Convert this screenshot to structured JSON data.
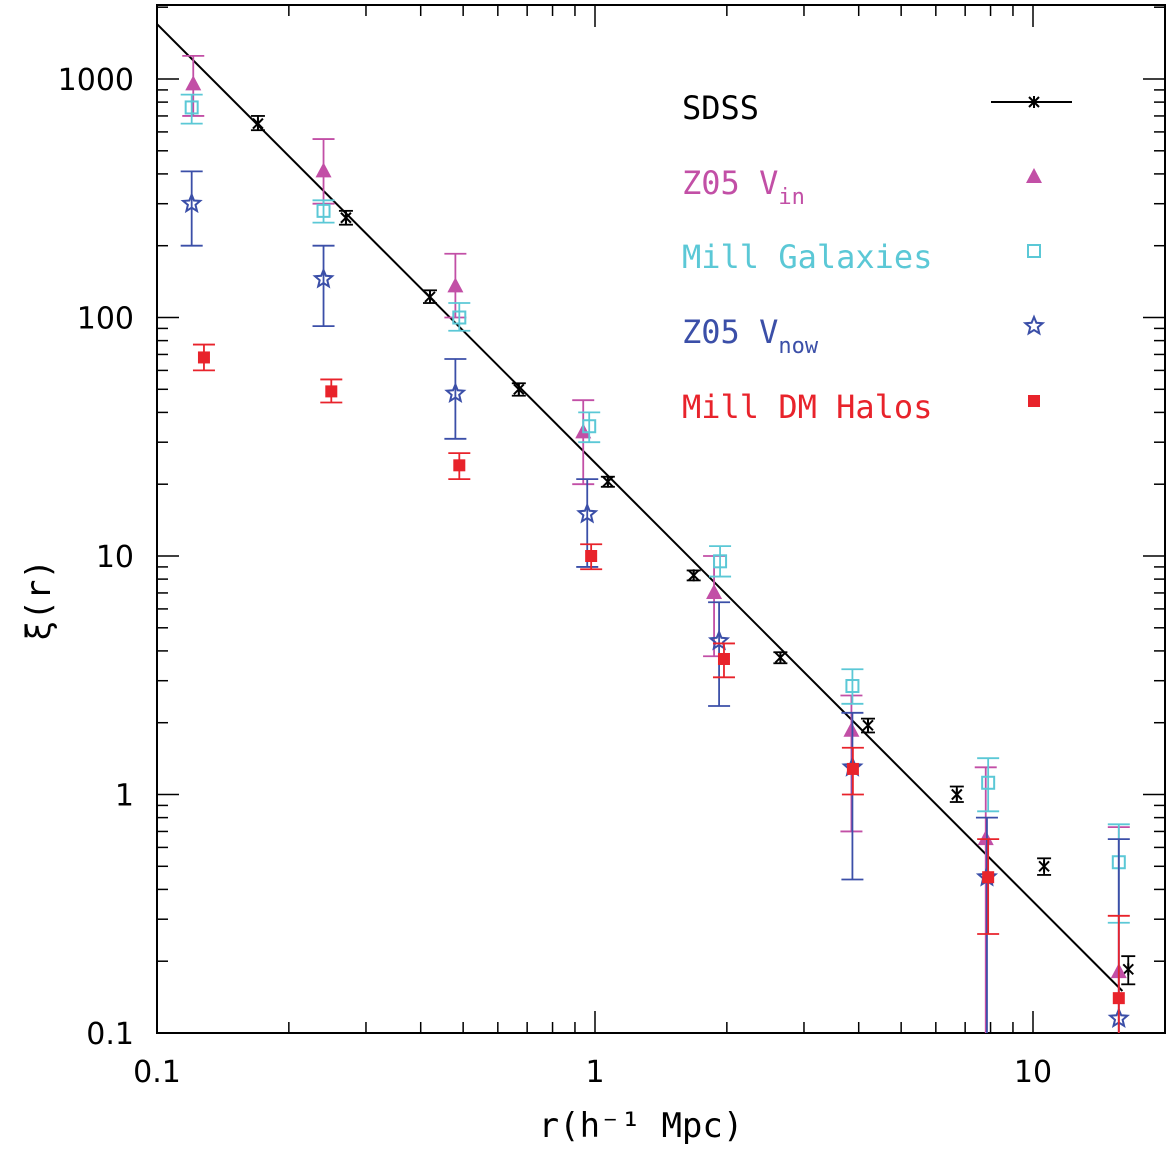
{
  "chart_data": {
    "type": "scatter",
    "xscale": "log",
    "yscale": "log",
    "xlim": [
      0.1,
      20
    ],
    "ylim": [
      0.1,
      2000
    ],
    "xlabel": "r(h⁻¹ Mpc)",
    "ylabel": "ξ(r)",
    "xticks": [
      0.1,
      1,
      10
    ],
    "xtick_labels": [
      "0.1",
      "1",
      "10"
    ],
    "yticks": [
      0.1,
      1,
      10,
      100,
      1000
    ],
    "ytick_labels": [
      "0.1",
      "1",
      "10",
      "100",
      "1000"
    ],
    "legend_position": "top-right",
    "power_law_line": {
      "x": [
        0.1,
        16
      ],
      "y": [
        1700,
        0.15
      ]
    },
    "series": [
      {
        "name": "SDSS",
        "marker": "cross",
        "color": "#000000",
        "points": [
          {
            "x": 0.17,
            "y": 650,
            "lo": 610,
            "hi": 700
          },
          {
            "x": 0.27,
            "y": 262,
            "lo": 245,
            "hi": 280
          },
          {
            "x": 0.42,
            "y": 122,
            "lo": 115,
            "hi": 130
          },
          {
            "x": 0.67,
            "y": 50,
            "lo": 47,
            "hi": 53
          },
          {
            "x": 1.07,
            "y": 20.5,
            "lo": 19.5,
            "hi": 21.5
          },
          {
            "x": 1.68,
            "y": 8.3,
            "lo": 7.9,
            "hi": 8.7
          },
          {
            "x": 2.65,
            "y": 3.75,
            "lo": 3.55,
            "hi": 3.95
          },
          {
            "x": 4.2,
            "y": 1.95,
            "lo": 1.82,
            "hi": 2.08
          },
          {
            "x": 6.7,
            "y": 1.0,
            "lo": 0.93,
            "hi": 1.08
          },
          {
            "x": 10.6,
            "y": 0.5,
            "lo": 0.46,
            "hi": 0.54
          },
          {
            "x": 16.5,
            "y": 0.185,
            "lo": 0.16,
            "hi": 0.21
          }
        ]
      },
      {
        "name": "Z05 V",
        "name_sub": "in",
        "marker": "triangle",
        "color": "#c24fa6",
        "points": [
          {
            "x": 0.121,
            "y": 950,
            "lo": 700,
            "hi": 1250
          },
          {
            "x": 0.24,
            "y": 410,
            "lo": 300,
            "hi": 560
          },
          {
            "x": 0.48,
            "y": 135,
            "lo": 100,
            "hi": 185
          },
          {
            "x": 0.94,
            "y": 33,
            "lo": 20,
            "hi": 45
          },
          {
            "x": 1.87,
            "y": 7.0,
            "lo": 3.8,
            "hi": 10
          },
          {
            "x": 3.85,
            "y": 1.85,
            "lo": 0.7,
            "hi": 2.6
          },
          {
            "x": 7.8,
            "y": 0.65,
            "lo": 0.1,
            "hi": 1.3
          },
          {
            "x": 15.7,
            "y": 0.18,
            "lo": 0.1,
            "hi": 0.73
          }
        ]
      },
      {
        "name": "Mill Galaxies",
        "marker": "square-open",
        "color": "#5bc8d6",
        "points": [
          {
            "x": 0.12,
            "y": 760,
            "lo": 650,
            "hi": 860
          },
          {
            "x": 0.24,
            "y": 280,
            "lo": 250,
            "hi": 310
          },
          {
            "x": 0.49,
            "y": 100,
            "lo": 88,
            "hi": 115
          },
          {
            "x": 0.97,
            "y": 35,
            "lo": 30,
            "hi": 40
          },
          {
            "x": 1.93,
            "y": 9.5,
            "lo": 8.2,
            "hi": 11
          },
          {
            "x": 3.87,
            "y": 2.85,
            "lo": 2.4,
            "hi": 3.35
          },
          {
            "x": 7.9,
            "y": 1.12,
            "lo": 0.85,
            "hi": 1.42
          },
          {
            "x": 15.7,
            "y": 0.52,
            "lo": 0.29,
            "hi": 0.75
          }
        ]
      },
      {
        "name": "Z05 V",
        "name_sub": "now",
        "marker": "star-open",
        "color": "#3b4fa8",
        "points": [
          {
            "x": 0.12,
            "y": 300,
            "lo": 200,
            "hi": 410
          },
          {
            "x": 0.24,
            "y": 145,
            "lo": 92,
            "hi": 200
          },
          {
            "x": 0.48,
            "y": 48,
            "lo": 31,
            "hi": 67
          },
          {
            "x": 0.96,
            "y": 15,
            "lo": 9,
            "hi": 21
          },
          {
            "x": 1.92,
            "y": 4.4,
            "lo": 2.35,
            "hi": 6.4
          },
          {
            "x": 3.87,
            "y": 1.3,
            "lo": 0.44,
            "hi": 2.2
          },
          {
            "x": 7.85,
            "y": 0.45,
            "lo": 0.1,
            "hi": 0.8
          },
          {
            "x": 15.7,
            "y": 0.115,
            "lo": 0.1,
            "hi": 0.65
          }
        ]
      },
      {
        "name": "Mill DM Halos",
        "marker": "square-filled",
        "color": "#e8232b",
        "points": [
          {
            "x": 0.128,
            "y": 68,
            "lo": 60,
            "hi": 77
          },
          {
            "x": 0.25,
            "y": 49,
            "lo": 44,
            "hi": 55
          },
          {
            "x": 0.49,
            "y": 24,
            "lo": 21,
            "hi": 27
          },
          {
            "x": 0.98,
            "y": 10,
            "lo": 8.8,
            "hi": 11.2
          },
          {
            "x": 1.97,
            "y": 3.7,
            "lo": 3.1,
            "hi": 4.3
          },
          {
            "x": 3.88,
            "y": 1.28,
            "lo": 1.0,
            "hi": 1.57
          },
          {
            "x": 7.9,
            "y": 0.45,
            "lo": 0.26,
            "hi": 0.65
          },
          {
            "x": 15.7,
            "y": 0.14,
            "lo": 0.1,
            "hi": 0.31
          }
        ]
      }
    ]
  }
}
